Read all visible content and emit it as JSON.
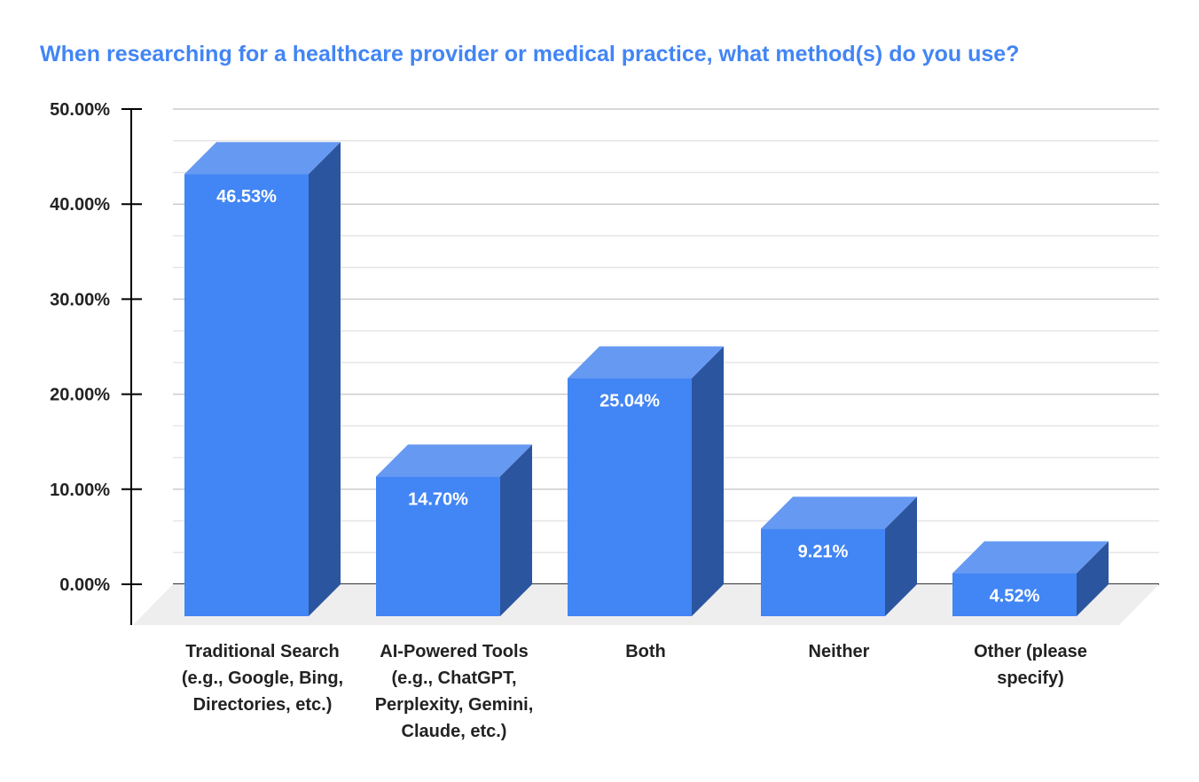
{
  "chart_data": {
    "type": "bar",
    "title": "When researching for a healthcare provider or medical practice, what method(s) do you use?",
    "categories": [
      [
        "Traditional Search",
        "(e.g., Google, Bing,",
        "Directories, etc.)"
      ],
      [
        "AI-Powered Tools",
        "(e.g., ChatGPT,",
        "Perplexity, Gemini,",
        "Claude, etc.)"
      ],
      [
        "Both"
      ],
      [
        "Neither"
      ],
      [
        "Other (please",
        "specify)"
      ]
    ],
    "values": [
      46.53,
      14.7,
      25.04,
      9.21,
      4.52
    ],
    "data_labels": [
      "46.53%",
      "14.70%",
      "25.04%",
      "9.21%",
      "4.52%"
    ],
    "ylim": [
      0,
      50
    ],
    "yticks": [
      "0.00%",
      "10.00%",
      "20.00%",
      "30.00%",
      "40.00%",
      "50.00%"
    ],
    "xlabel": "",
    "ylabel": "",
    "grid": true,
    "colors": {
      "title": "#4285F4",
      "front": "#4285F4",
      "top": "#6699F2",
      "side": "#2C559F",
      "floor": "#EEEEEE"
    }
  }
}
